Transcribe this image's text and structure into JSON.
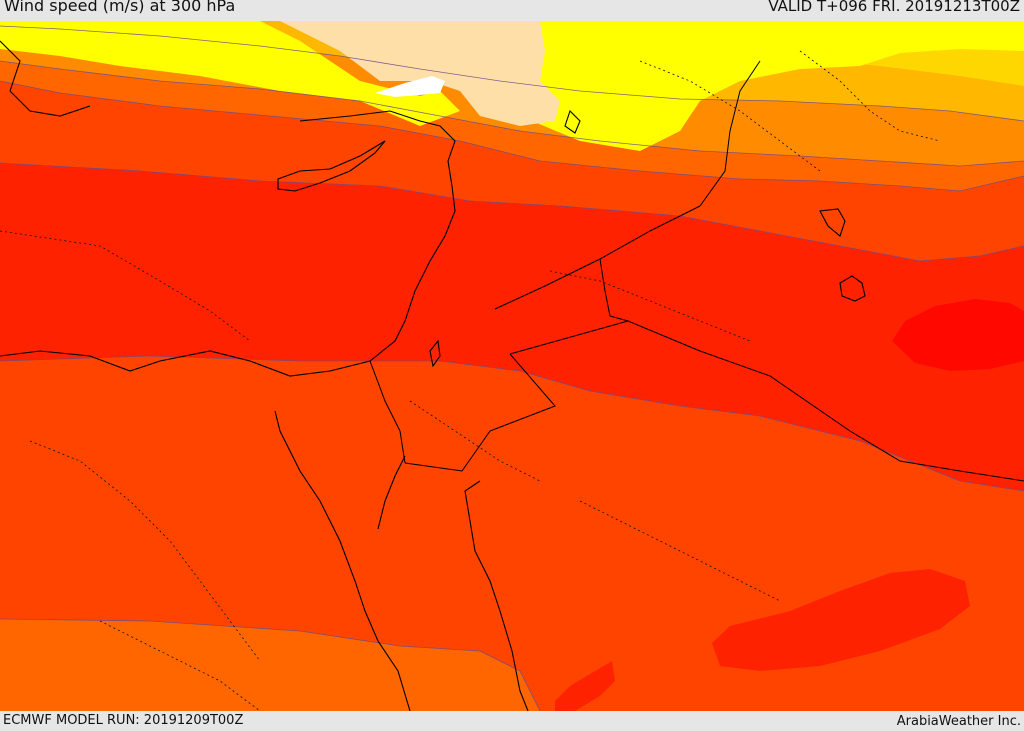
{
  "header": {
    "title": "Wind speed (m/s) at 300 hPa",
    "valid": "VALID T+096 FRI. 20191213T00Z"
  },
  "footer": {
    "model_run": "ECMWF MODEL RUN: 20191209T00Z",
    "credit": "ArabiaWeather Inc."
  },
  "map": {
    "parameter": "wind speed",
    "units": "m/s",
    "level": "300 hPa",
    "region": "Eastern Mediterranean and Middle East",
    "colors": {
      "calm": "#ffffff",
      "band_1": "#ffdfa8",
      "band_2": "#ffff00",
      "band_3": "#ffd700",
      "band_4": "#ffb700",
      "band_5": "#ff8c00",
      "band_6": "#ff6600",
      "band_7": "#ff4400",
      "band_8": "#ff2200",
      "band_9": "#ff0800"
    }
  }
}
